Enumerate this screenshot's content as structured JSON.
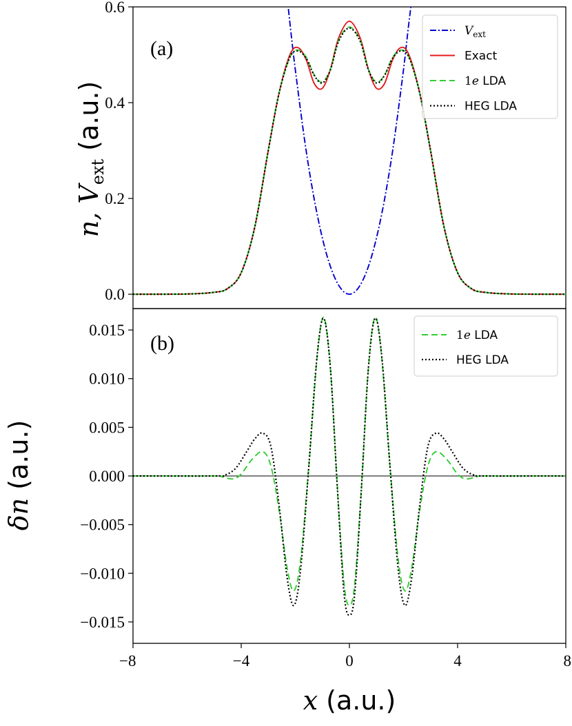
{
  "chart_data": [
    {
      "panel": "(a)",
      "type": "line",
      "ylabel": "n, V_ext (a.u.)",
      "ylabel_math": "n, V",
      "ylabel_sub": "ext",
      "ylabel_unit": "(a.u.)",
      "xlim": [
        -8,
        8
      ],
      "ylim": [
        -0.03,
        0.6
      ],
      "yticks": [
        "0.0",
        "0.2",
        "0.4",
        "0.6"
      ],
      "ytick_values": [
        0.0,
        0.2,
        0.4,
        0.6
      ],
      "legend": {
        "placement": "top-right",
        "entries": [
          "V_ext",
          "Exact",
          "1e LDA",
          "HEG LDA"
        ]
      },
      "series": [
        {
          "name": "V_ext",
          "display": "V",
          "display_sub": "ext",
          "color": "#0000cc",
          "style": "dashdot",
          "x": [
            -2.3,
            -2.2,
            -2.0,
            -1.6,
            -1.2,
            -0.8,
            -0.4,
            0.0,
            0.4,
            0.8,
            1.2,
            1.6,
            2.0,
            2.2,
            2.5
          ],
          "y": [
            0.62,
            0.567,
            0.469,
            0.3,
            0.169,
            0.075,
            0.019,
            0.0,
            0.019,
            0.075,
            0.169,
            0.3,
            0.469,
            0.567,
            0.7
          ]
        },
        {
          "name": "Exact",
          "display": "Exact",
          "color": "#e41a1c",
          "style": "solid",
          "x": [
            -8,
            -6,
            -5,
            -4.5,
            -4,
            -3.5,
            -3,
            -2.6,
            -2.2,
            -1.9,
            -1.6,
            -1.3,
            -1.0,
            -0.7,
            -0.4,
            0,
            0.4,
            0.7,
            1.0,
            1.3,
            1.6,
            1.9,
            2.2,
            2.6,
            3,
            3.5,
            4,
            4.5,
            5,
            6,
            8
          ],
          "y": [
            0.0,
            0.0005,
            0.004,
            0.012,
            0.045,
            0.14,
            0.3,
            0.42,
            0.5,
            0.515,
            0.49,
            0.44,
            0.43,
            0.47,
            0.535,
            0.57,
            0.535,
            0.47,
            0.43,
            0.44,
            0.49,
            0.515,
            0.5,
            0.42,
            0.3,
            0.14,
            0.045,
            0.012,
            0.004,
            0.0005,
            0.0
          ]
        },
        {
          "name": "1e LDA",
          "display": "1e LDA",
          "color": "#33cc33",
          "style": "dashed",
          "x": [
            -8,
            -6,
            -5,
            -4.5,
            -4,
            -3.5,
            -3,
            -2.6,
            -2.2,
            -1.9,
            -1.6,
            -1.3,
            -1.0,
            -0.7,
            -0.4,
            0,
            0.4,
            0.7,
            1.0,
            1.3,
            1.6,
            1.9,
            2.2,
            2.6,
            3,
            3.5,
            4,
            4.5,
            5,
            6,
            8
          ],
          "y": [
            0.0,
            0.0005,
            0.004,
            0.012,
            0.045,
            0.14,
            0.3,
            0.42,
            0.495,
            0.51,
            0.495,
            0.458,
            0.443,
            0.47,
            0.53,
            0.558,
            0.53,
            0.47,
            0.443,
            0.458,
            0.495,
            0.51,
            0.495,
            0.42,
            0.3,
            0.14,
            0.045,
            0.012,
            0.004,
            0.0005,
            0.0
          ]
        },
        {
          "name": "HEG LDA",
          "display": "HEG LDA",
          "color": "#000000",
          "style": "dotted",
          "x": [
            -8,
            -6,
            -5,
            -4.5,
            -4,
            -3.5,
            -3,
            -2.6,
            -2.2,
            -1.9,
            -1.6,
            -1.3,
            -1.0,
            -0.7,
            -0.4,
            0,
            0.4,
            0.7,
            1.0,
            1.3,
            1.6,
            1.9,
            2.2,
            2.6,
            3,
            3.5,
            4,
            4.5,
            5,
            6,
            8
          ],
          "y": [
            0.0,
            0.0005,
            0.004,
            0.012,
            0.045,
            0.14,
            0.3,
            0.42,
            0.495,
            0.508,
            0.493,
            0.457,
            0.441,
            0.469,
            0.528,
            0.556,
            0.528,
            0.469,
            0.441,
            0.457,
            0.493,
            0.508,
            0.495,
            0.42,
            0.3,
            0.14,
            0.045,
            0.012,
            0.004,
            0.0005,
            0.0
          ]
        }
      ]
    },
    {
      "panel": "(b)",
      "type": "line",
      "xlabel": "x (a.u.)",
      "xlabel_math": "x",
      "xlabel_unit": "(a.u.)",
      "ylabel": "δn (a.u.)",
      "ylabel_math": "δn",
      "ylabel_unit": "(a.u.)",
      "xlim": [
        -8,
        8
      ],
      "ylim": [
        -0.0172,
        0.0172
      ],
      "xticks": [
        "−8",
        "−4",
        "0",
        "4",
        "8"
      ],
      "xtick_values": [
        -8,
        -4,
        0,
        4,
        8
      ],
      "yticks": [
        "−0.015",
        "−0.010",
        "−0.005",
        "0.000",
        "0.005",
        "0.010",
        "0.015"
      ],
      "ytick_values": [
        -0.015,
        -0.01,
        -0.005,
        0.0,
        0.005,
        0.01,
        0.015
      ],
      "legend": {
        "placement": "top-right",
        "entries": [
          "1e LDA",
          "HEG LDA"
        ]
      },
      "series": [
        {
          "name": "1e LDA",
          "display": "1e LDA",
          "color": "#33cc33",
          "style": "dashed",
          "x": [
            -8,
            -5,
            -4.7,
            -4.3,
            -4.0,
            -3.6,
            -3.2,
            -2.9,
            -2.6,
            -2.3,
            -2.05,
            -1.8,
            -1.5,
            -1.2,
            -0.95,
            -0.7,
            -0.45,
            -0.2,
            0,
            0.2,
            0.45,
            0.7,
            0.95,
            1.2,
            1.5,
            1.8,
            2.05,
            2.3,
            2.6,
            2.9,
            3.2,
            3.6,
            4.0,
            4.3,
            4.7,
            5,
            8
          ],
          "y": [
            0,
            0,
            -0.0001,
            -0.0003,
            0.0002,
            0.0017,
            0.0025,
            0.001,
            -0.0035,
            -0.0095,
            -0.0118,
            -0.0085,
            0.001,
            0.012,
            0.0163,
            0.011,
            -0.001,
            -0.011,
            -0.0133,
            -0.011,
            -0.001,
            0.011,
            0.0163,
            0.012,
            0.001,
            -0.0085,
            -0.0118,
            -0.0095,
            -0.0035,
            0.001,
            0.0025,
            0.0017,
            0.0002,
            -0.0003,
            -0.0001,
            0,
            0
          ]
        },
        {
          "name": "HEG LDA",
          "display": "HEG LDA",
          "color": "#000000",
          "style": "dotted",
          "x": [
            -8,
            -5,
            -4.6,
            -4.2,
            -3.8,
            -3.5,
            -3.2,
            -2.9,
            -2.6,
            -2.3,
            -2.05,
            -1.8,
            -1.5,
            -1.2,
            -0.95,
            -0.7,
            -0.45,
            -0.2,
            0,
            0.2,
            0.45,
            0.7,
            0.95,
            1.2,
            1.5,
            1.8,
            2.05,
            2.3,
            2.6,
            2.9,
            3.2,
            3.5,
            3.8,
            4.2,
            4.6,
            5,
            8
          ],
          "y": [
            0,
            0,
            0.0001,
            0.0008,
            0.0025,
            0.0038,
            0.0044,
            0.003,
            -0.003,
            -0.0105,
            -0.0133,
            -0.0095,
            0.001,
            0.0122,
            0.0162,
            0.011,
            -0.001,
            -0.012,
            -0.0143,
            -0.012,
            -0.001,
            0.011,
            0.0162,
            0.0122,
            0.001,
            -0.0095,
            -0.0133,
            -0.0105,
            -0.003,
            0.003,
            0.0044,
            0.0038,
            0.0025,
            0.0008,
            0.0001,
            0,
            0
          ]
        }
      ]
    }
  ]
}
